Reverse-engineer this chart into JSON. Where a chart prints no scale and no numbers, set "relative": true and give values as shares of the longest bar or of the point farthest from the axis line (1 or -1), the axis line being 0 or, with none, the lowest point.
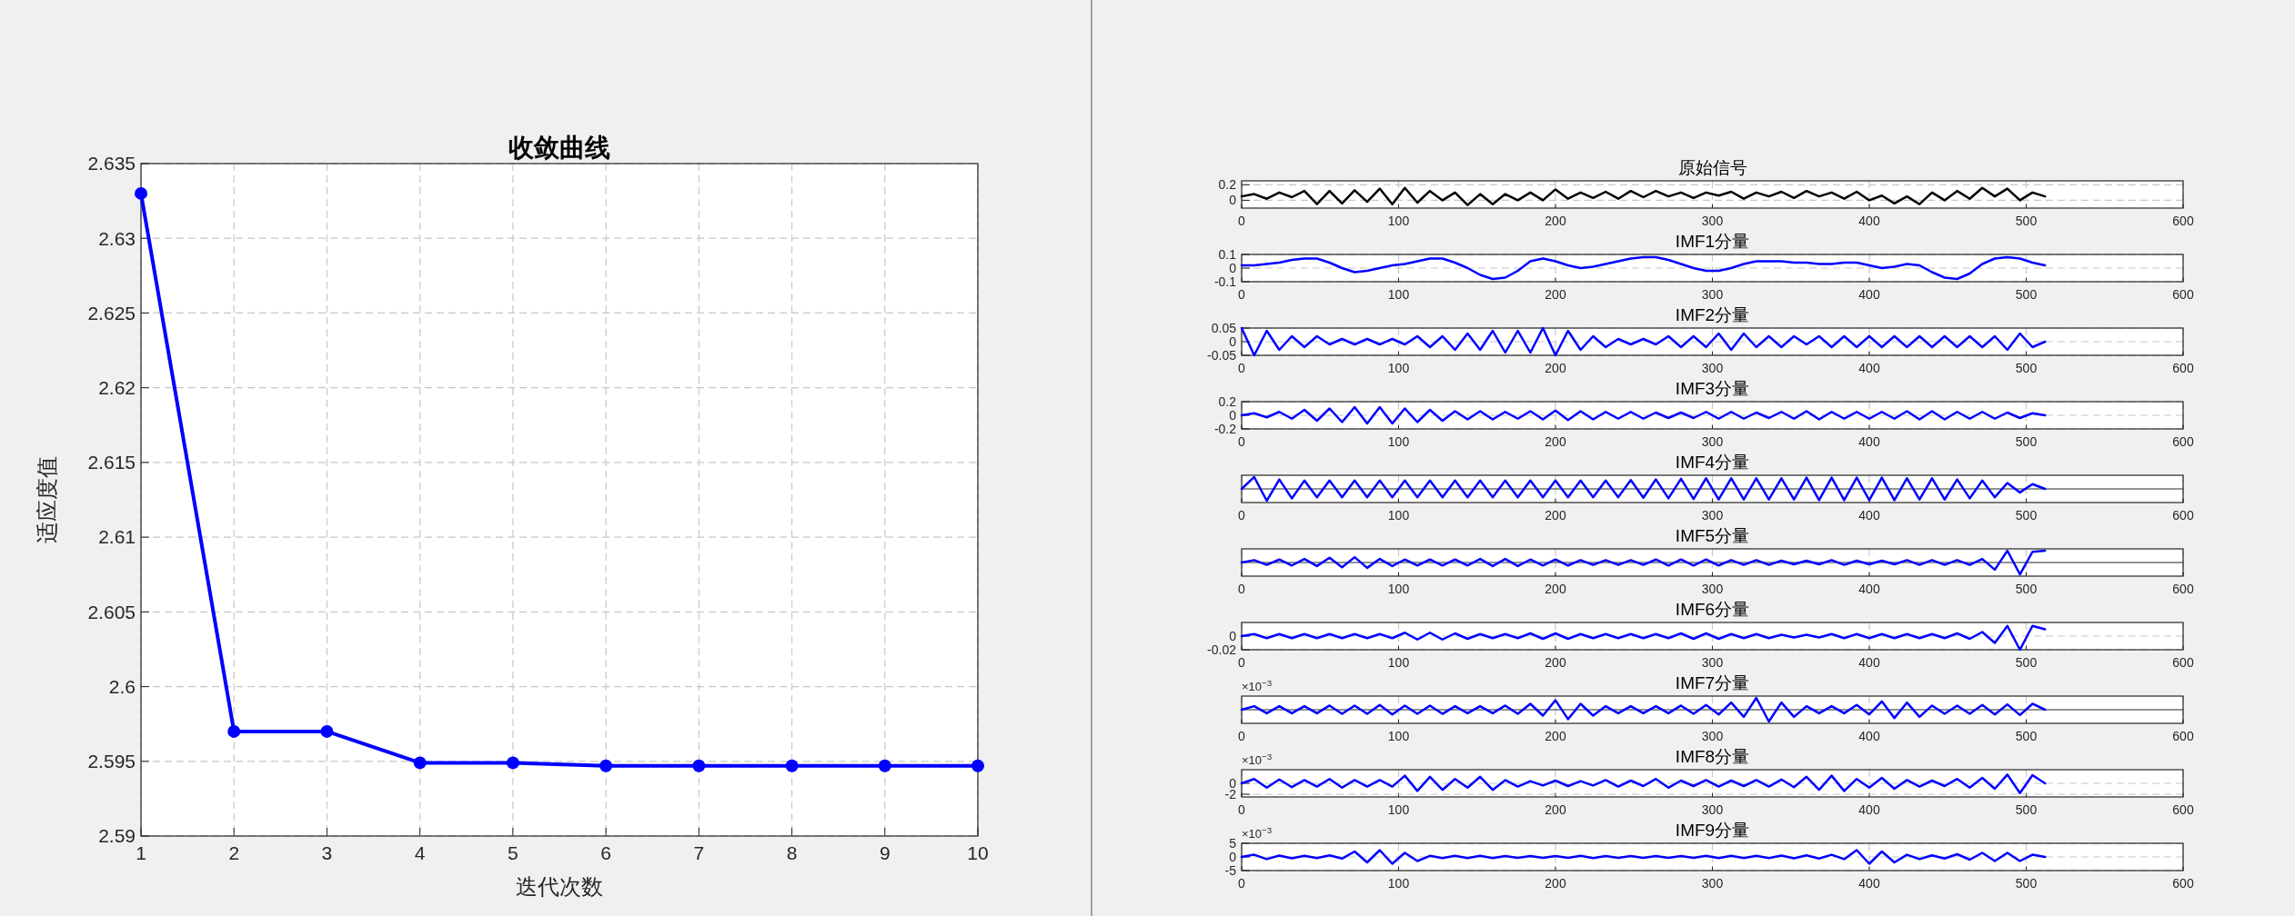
{
  "chart_data": [
    {
      "type": "line",
      "title": "收敛曲线",
      "xlabel": "迭代次数",
      "ylabel": "适应度值",
      "x": [
        1,
        2,
        3,
        4,
        5,
        6,
        7,
        8,
        9,
        10
      ],
      "series": [
        {
          "color": "#0000ff",
          "values": [
            2.633,
            2.597,
            2.597,
            2.5949,
            2.5949,
            2.5947,
            2.5947,
            2.5947,
            2.5947,
            2.5947
          ]
        }
      ],
      "xlim": [
        1,
        10
      ],
      "xticks": [
        1,
        2,
        3,
        4,
        5,
        6,
        7,
        8,
        9,
        10
      ],
      "ylim": [
        2.59,
        2.635
      ],
      "yticks": [
        2.59,
        2.595,
        2.6,
        2.605,
        2.61,
        2.615,
        2.62,
        2.625,
        2.63,
        2.635
      ],
      "grid": true,
      "marker": "circle",
      "line_style": "solid"
    },
    {
      "type": "line",
      "title": "原始信号",
      "x": [
        0,
        8,
        16,
        24,
        32,
        40,
        48,
        56,
        64,
        72,
        80,
        88,
        96,
        104,
        112,
        120,
        128,
        136,
        144,
        152,
        160,
        168,
        176,
        184,
        192,
        200,
        208,
        216,
        224,
        232,
        240,
        248,
        256,
        264,
        272,
        280,
        288,
        296,
        304,
        312,
        320,
        328,
        336,
        344,
        352,
        360,
        368,
        376,
        384,
        392,
        400,
        408,
        416,
        424,
        432,
        440,
        448,
        456,
        464,
        472,
        480,
        488,
        496,
        504,
        512
      ],
      "series": [
        {
          "color": "#000000",
          "values": [
            0.05,
            0.08,
            0.02,
            0.1,
            0.04,
            0.12,
            -0.05,
            0.12,
            -0.04,
            0.13,
            -0.02,
            0.15,
            -0.05,
            0.16,
            -0.03,
            0.12,
            0.0,
            0.1,
            -0.06,
            0.08,
            -0.05,
            0.08,
            0.0,
            0.1,
            0.0,
            0.14,
            0.02,
            0.1,
            0.03,
            0.11,
            0.02,
            0.12,
            0.04,
            0.12,
            0.05,
            0.1,
            0.03,
            0.1,
            0.06,
            0.11,
            0.02,
            0.1,
            0.05,
            0.11,
            0.03,
            0.12,
            0.05,
            0.1,
            0.02,
            0.11,
            0.0,
            0.06,
            -0.04,
            0.05,
            -0.05,
            0.1,
            0.0,
            0.12,
            0.02,
            0.16,
            0.05,
            0.15,
            0.0,
            0.1,
            0.05
          ]
        }
      ],
      "xlim": [
        0,
        600
      ],
      "xticks": [
        0,
        100,
        200,
        300,
        400,
        500,
        600
      ],
      "ylim": [
        -0.1,
        0.25
      ],
      "yticks": [
        0,
        0.2
      ],
      "grid": true
    },
    {
      "type": "line",
      "title": "IMF1分量",
      "x": [
        0,
        8,
        16,
        24,
        32,
        40,
        48,
        56,
        64,
        72,
        80,
        88,
        96,
        104,
        112,
        120,
        128,
        136,
        144,
        152,
        160,
        168,
        176,
        184,
        192,
        200,
        208,
        216,
        224,
        232,
        240,
        248,
        256,
        264,
        272,
        280,
        288,
        296,
        304,
        312,
        320,
        328,
        336,
        344,
        352,
        360,
        368,
        376,
        384,
        392,
        400,
        408,
        416,
        424,
        432,
        440,
        448,
        456,
        464,
        472,
        480,
        488,
        496,
        504,
        512
      ],
      "series": [
        {
          "color": "#0000ff",
          "values": [
            0.02,
            0.02,
            0.03,
            0.04,
            0.06,
            0.07,
            0.07,
            0.04,
            0.0,
            -0.03,
            -0.02,
            0.0,
            0.02,
            0.03,
            0.05,
            0.07,
            0.07,
            0.04,
            0.0,
            -0.05,
            -0.08,
            -0.07,
            -0.02,
            0.05,
            0.07,
            0.05,
            0.02,
            0.0,
            0.01,
            0.03,
            0.05,
            0.07,
            0.08,
            0.08,
            0.06,
            0.03,
            0.0,
            -0.02,
            -0.02,
            0.0,
            0.03,
            0.05,
            0.05,
            0.05,
            0.04,
            0.04,
            0.03,
            0.03,
            0.04,
            0.04,
            0.02,
            0.0,
            0.01,
            0.03,
            0.02,
            -0.03,
            -0.07,
            -0.08,
            -0.04,
            0.03,
            0.07,
            0.08,
            0.07,
            0.04,
            0.02
          ]
        }
      ],
      "xlim": [
        0,
        600
      ],
      "xticks": [
        0,
        100,
        200,
        300,
        400,
        500,
        600
      ],
      "ylim": [
        -0.1,
        0.1
      ],
      "yticks": [
        -0.1,
        0,
        0.1
      ],
      "grid": true
    },
    {
      "type": "line",
      "title": "IMF2分量",
      "x": [
        0,
        8,
        16,
        24,
        32,
        40,
        48,
        56,
        64,
        72,
        80,
        88,
        96,
        104,
        112,
        120,
        128,
        136,
        144,
        152,
        160,
        168,
        176,
        184,
        192,
        200,
        208,
        216,
        224,
        232,
        240,
        248,
        256,
        264,
        272,
        280,
        288,
        296,
        304,
        312,
        320,
        328,
        336,
        344,
        352,
        360,
        368,
        376,
        384,
        392,
        400,
        408,
        416,
        424,
        432,
        440,
        448,
        456,
        464,
        472,
        480,
        488,
        496,
        504,
        512
      ],
      "series": [
        {
          "color": "#0000ff",
          "values": [
            0.05,
            -0.05,
            0.04,
            -0.03,
            0.02,
            -0.02,
            0.02,
            -0.01,
            0.01,
            -0.01,
            0.01,
            -0.01,
            0.01,
            -0.01,
            0.02,
            -0.02,
            0.02,
            -0.03,
            0.03,
            -0.03,
            0.04,
            -0.04,
            0.04,
            -0.04,
            0.05,
            -0.05,
            0.04,
            -0.03,
            0.02,
            -0.02,
            0.01,
            -0.01,
            0.01,
            -0.01,
            0.02,
            -0.02,
            0.02,
            -0.02,
            0.03,
            -0.03,
            0.03,
            -0.02,
            0.02,
            -0.02,
            0.02,
            -0.01,
            0.02,
            -0.02,
            0.02,
            -0.02,
            0.02,
            -0.02,
            0.02,
            -0.02,
            0.02,
            -0.02,
            0.02,
            -0.02,
            0.02,
            -0.02,
            0.02,
            -0.03,
            0.03,
            -0.02,
            0.0
          ]
        }
      ],
      "xlim": [
        0,
        600
      ],
      "xticks": [
        0,
        100,
        200,
        300,
        400,
        500,
        600
      ],
      "ylim": [
        -0.05,
        0.05
      ],
      "yticks": [
        -0.05,
        0,
        0.05
      ],
      "grid": true
    },
    {
      "type": "line",
      "title": "IMF3分量",
      "x": [
        0,
        8,
        16,
        24,
        32,
        40,
        48,
        56,
        64,
        72,
        80,
        88,
        96,
        104,
        112,
        120,
        128,
        136,
        144,
        152,
        160,
        168,
        176,
        184,
        192,
        200,
        208,
        216,
        224,
        232,
        240,
        248,
        256,
        264,
        272,
        280,
        288,
        296,
        304,
        312,
        320,
        328,
        336,
        344,
        352,
        360,
        368,
        376,
        384,
        392,
        400,
        408,
        416,
        424,
        432,
        440,
        448,
        456,
        464,
        472,
        480,
        488,
        496,
        504,
        512
      ],
      "series": [
        {
          "color": "#0000ff",
          "values": [
            0.0,
            0.03,
            -0.03,
            0.05,
            -0.05,
            0.08,
            -0.08,
            0.1,
            -0.1,
            0.12,
            -0.12,
            0.12,
            -0.12,
            0.1,
            -0.1,
            0.08,
            -0.08,
            0.06,
            -0.06,
            0.06,
            -0.06,
            0.05,
            -0.05,
            0.06,
            -0.06,
            0.07,
            -0.07,
            0.06,
            -0.06,
            0.05,
            -0.05,
            0.05,
            -0.05,
            0.04,
            -0.04,
            0.04,
            -0.04,
            0.05,
            -0.05,
            0.05,
            -0.05,
            0.04,
            -0.04,
            0.05,
            -0.05,
            0.06,
            -0.06,
            0.05,
            -0.05,
            0.05,
            -0.05,
            0.05,
            -0.05,
            0.06,
            -0.06,
            0.06,
            -0.06,
            0.05,
            -0.05,
            0.05,
            -0.05,
            0.04,
            -0.04,
            0.03,
            0.0
          ]
        }
      ],
      "xlim": [
        0,
        600
      ],
      "xticks": [
        0,
        100,
        200,
        300,
        400,
        500,
        600
      ],
      "ylim": [
        -0.2,
        0.2
      ],
      "yticks": [
        -0.2,
        0,
        0.2
      ],
      "grid": true
    },
    {
      "type": "line",
      "title": "IMF4分量",
      "relative": true,
      "x": [
        0,
        8,
        16,
        24,
        32,
        40,
        48,
        56,
        64,
        72,
        80,
        88,
        96,
        104,
        112,
        120,
        128,
        136,
        144,
        152,
        160,
        168,
        176,
        184,
        192,
        200,
        208,
        216,
        224,
        232,
        240,
        248,
        256,
        264,
        272,
        280,
        288,
        296,
        304,
        312,
        320,
        328,
        336,
        344,
        352,
        360,
        368,
        376,
        384,
        392,
        400,
        408,
        416,
        424,
        432,
        440,
        448,
        456,
        464,
        472,
        480,
        488,
        496,
        504,
        512
      ],
      "series": [
        {
          "color": "#0000ff",
          "values": [
            0.0,
            1,
            -1,
            0.8,
            -0.8,
            0.7,
            -0.7,
            0.7,
            -0.7,
            0.7,
            -0.7,
            0.7,
            -0.7,
            0.7,
            -0.7,
            0.7,
            -0.7,
            0.7,
            -0.7,
            0.7,
            -0.7,
            0.7,
            -0.7,
            0.7,
            -0.7,
            0.7,
            -0.7,
            0.7,
            -0.7,
            0.7,
            -0.7,
            0.75,
            -0.75,
            0.8,
            -0.8,
            0.85,
            -0.85,
            0.9,
            -0.9,
            0.9,
            -0.9,
            0.9,
            -0.9,
            0.9,
            -0.9,
            0.95,
            -0.95,
            0.95,
            -0.95,
            0.95,
            -0.95,
            0.95,
            -0.95,
            0.9,
            -0.9,
            0.9,
            -0.9,
            0.8,
            -0.8,
            0.7,
            -0.7,
            0.5,
            -0.3,
            0.4,
            0.0
          ]
        }
      ],
      "xlim": [
        0,
        600
      ],
      "xticks": [
        0,
        100,
        200,
        300,
        400,
        500,
        600
      ],
      "grid": true
    },
    {
      "type": "line",
      "title": "IMF5分量",
      "relative": true,
      "x": [
        0,
        8,
        16,
        24,
        32,
        40,
        48,
        56,
        64,
        72,
        80,
        88,
        96,
        104,
        112,
        120,
        128,
        136,
        144,
        152,
        160,
        168,
        176,
        184,
        192,
        200,
        208,
        216,
        224,
        232,
        240,
        248,
        256,
        264,
        272,
        280,
        288,
        296,
        304,
        312,
        320,
        328,
        336,
        344,
        352,
        360,
        368,
        376,
        384,
        392,
        400,
        408,
        416,
        424,
        432,
        440,
        448,
        456,
        464,
        472,
        480,
        488,
        496,
        504,
        512
      ],
      "series": [
        {
          "color": "#0000ff",
          "values": [
            0.0,
            0.2,
            -0.2,
            0.25,
            -0.25,
            0.3,
            -0.3,
            0.4,
            -0.4,
            0.45,
            -0.45,
            0.3,
            -0.3,
            0.25,
            -0.25,
            0.25,
            -0.25,
            0.25,
            -0.25,
            0.3,
            -0.3,
            0.3,
            -0.3,
            0.25,
            -0.25,
            0.25,
            -0.25,
            0.2,
            -0.2,
            0.2,
            -0.2,
            0.2,
            -0.2,
            0.25,
            -0.25,
            0.25,
            -0.25,
            0.25,
            -0.25,
            0.2,
            -0.2,
            0.2,
            -0.2,
            0.15,
            -0.15,
            0.15,
            -0.15,
            0.2,
            -0.2,
            0.15,
            -0.15,
            0.15,
            -0.15,
            0.2,
            -0.2,
            0.2,
            -0.2,
            0.2,
            -0.2,
            0.3,
            -0.6,
            1,
            -1,
            0.9,
            1
          ]
        }
      ],
      "xlim": [
        0,
        600
      ],
      "xticks": [
        0,
        100,
        200,
        300,
        400,
        500,
        600
      ],
      "grid": true
    },
    {
      "type": "line",
      "title": "IMF6分量",
      "x": [
        0,
        8,
        16,
        24,
        32,
        40,
        48,
        56,
        64,
        72,
        80,
        88,
        96,
        104,
        112,
        120,
        128,
        136,
        144,
        152,
        160,
        168,
        176,
        184,
        192,
        200,
        208,
        216,
        224,
        232,
        240,
        248,
        256,
        264,
        272,
        280,
        288,
        296,
        304,
        312,
        320,
        328,
        336,
        344,
        352,
        360,
        368,
        376,
        384,
        392,
        400,
        408,
        416,
        424,
        432,
        440,
        448,
        456,
        464,
        472,
        480,
        488,
        496,
        504,
        512
      ],
      "series": [
        {
          "color": "#0000ff",
          "values": [
            0.0,
            0.003,
            -0.003,
            0.003,
            -0.003,
            0.003,
            -0.003,
            0.003,
            -0.003,
            0.003,
            -0.003,
            0.003,
            -0.003,
            0.005,
            -0.005,
            0.005,
            -0.005,
            0.004,
            -0.004,
            0.003,
            -0.003,
            0.003,
            -0.003,
            0.004,
            -0.004,
            0.004,
            -0.004,
            0.003,
            -0.003,
            0.003,
            -0.003,
            0.003,
            -0.003,
            0.003,
            -0.003,
            0.004,
            -0.004,
            0.004,
            -0.004,
            0.003,
            -0.003,
            0.003,
            -0.003,
            0.002,
            -0.002,
            0.002,
            -0.002,
            0.003,
            -0.003,
            0.003,
            -0.003,
            0.003,
            -0.003,
            0.003,
            -0.003,
            0.003,
            -0.003,
            0.004,
            -0.004,
            0.006,
            -0.01,
            0.015,
            -0.02,
            0.015,
            0.01
          ]
        }
      ],
      "xlim": [
        0,
        600
      ],
      "xticks": [
        0,
        100,
        200,
        300,
        400,
        500,
        600
      ],
      "ylim": [
        -0.02,
        0.02
      ],
      "yticks": [
        -0.02,
        0
      ],
      "grid": true
    },
    {
      "type": "line",
      "title": "IMF7分量",
      "relative": true,
      "annotations": [
        "×10$^{−3}$"
      ],
      "x": [
        0,
        8,
        16,
        24,
        32,
        40,
        48,
        56,
        64,
        72,
        80,
        88,
        96,
        104,
        112,
        120,
        128,
        136,
        144,
        152,
        160,
        168,
        176,
        184,
        192,
        200,
        208,
        216,
        224,
        232,
        240,
        248,
        256,
        264,
        272,
        280,
        288,
        296,
        304,
        312,
        320,
        328,
        336,
        344,
        352,
        360,
        368,
        376,
        384,
        392,
        400,
        408,
        416,
        424,
        432,
        440,
        448,
        456,
        464,
        472,
        480,
        488,
        496,
        504,
        512
      ],
      "series": [
        {
          "color": "#0000ff",
          "values": [
            0.0,
            0.3,
            -0.3,
            0.3,
            -0.3,
            0.3,
            -0.3,
            0.35,
            -0.35,
            0.35,
            -0.35,
            0.4,
            -0.4,
            0.35,
            -0.35,
            0.35,
            -0.35,
            0.3,
            -0.3,
            0.3,
            -0.3,
            0.35,
            -0.35,
            0.5,
            -0.5,
            0.8,
            -0.8,
            0.5,
            -0.5,
            0.3,
            -0.3,
            0.3,
            -0.3,
            0.3,
            -0.3,
            0.35,
            -0.35,
            0.4,
            -0.4,
            0.6,
            -0.6,
            1,
            -1,
            0.6,
            -0.6,
            0.3,
            -0.3,
            0.3,
            -0.3,
            0.4,
            -0.4,
            0.7,
            -0.7,
            0.6,
            -0.6,
            0.35,
            -0.35,
            0.35,
            -0.35,
            0.4,
            -0.4,
            0.45,
            -0.45,
            0.5,
            0.0
          ]
        }
      ],
      "xlim": [
        0,
        600
      ],
      "xticks": [
        0,
        100,
        200,
        300,
        400,
        500,
        600
      ],
      "grid": true
    },
    {
      "type": "line",
      "title": "IMF8分量",
      "annotations": [
        "×10$^{−3}$"
      ],
      "x": [
        0,
        8,
        16,
        24,
        32,
        40,
        48,
        56,
        64,
        72,
        80,
        88,
        96,
        104,
        112,
        120,
        128,
        136,
        144,
        152,
        160,
        168,
        176,
        184,
        192,
        200,
        208,
        216,
        224,
        232,
        240,
        248,
        256,
        264,
        272,
        280,
        288,
        296,
        304,
        312,
        320,
        328,
        336,
        344,
        352,
        360,
        368,
        376,
        384,
        392,
        400,
        408,
        416,
        424,
        432,
        440,
        448,
        456,
        464,
        472,
        480,
        488,
        496,
        504,
        512
      ],
      "series": [
        {
          "color": "#0000ff",
          "values": [
            0.0,
            0.8,
            -0.8,
            0.7,
            -0.7,
            0.6,
            -0.6,
            0.8,
            -0.8,
            0.6,
            -0.6,
            0.6,
            -0.6,
            1.4,
            -1.4,
            1.2,
            -1.2,
            0.8,
            -0.8,
            1.2,
            -1.2,
            0.6,
            -0.6,
            0.4,
            -0.4,
            0.5,
            -0.5,
            0.4,
            -0.4,
            0.6,
            -0.6,
            0.5,
            -0.5,
            0.8,
            -0.8,
            0.5,
            -0.5,
            0.6,
            -0.6,
            0.5,
            -0.5,
            0.6,
            -0.6,
            0.7,
            -0.7,
            1.2,
            -1.2,
            1.4,
            -1.4,
            0.8,
            -0.8,
            1.0,
            -1.0,
            0.6,
            -0.6,
            0.5,
            -0.5,
            0.8,
            -0.8,
            1.0,
            -1.0,
            1.6,
            -1.8,
            1.5,
            0.0
          ]
        }
      ],
      "xlim": [
        0,
        600
      ],
      "xticks": [
        0,
        100,
        200,
        300,
        400,
        500,
        600
      ],
      "ylim": [
        -2.5,
        2.5
      ],
      "yticks": [
        -2,
        0
      ],
      "grid": true
    },
    {
      "type": "line",
      "title": "IMF9分量",
      "annotations": [
        "×10$^{−3}$"
      ],
      "x": [
        0,
        8,
        16,
        24,
        32,
        40,
        48,
        56,
        64,
        72,
        80,
        88,
        96,
        104,
        112,
        120,
        128,
        136,
        144,
        152,
        160,
        168,
        176,
        184,
        192,
        200,
        208,
        216,
        224,
        232,
        240,
        248,
        256,
        264,
        272,
        280,
        288,
        296,
        304,
        312,
        320,
        328,
        336,
        344,
        352,
        360,
        368,
        376,
        384,
        392,
        400,
        408,
        416,
        424,
        432,
        440,
        448,
        456,
        464,
        472,
        480,
        488,
        496,
        504,
        512
      ],
      "series": [
        {
          "color": "#0000ff",
          "values": [
            0.0,
            0.8,
            -0.8,
            0.5,
            -0.5,
            0.4,
            -0.4,
            0.6,
            -0.6,
            2.0,
            -2.0,
            2.5,
            -2.5,
            1.5,
            -1.5,
            0.4,
            -0.4,
            0.4,
            -0.4,
            0.4,
            -0.4,
            0.3,
            -0.3,
            0.3,
            -0.3,
            0.3,
            -0.3,
            0.4,
            -0.4,
            0.3,
            -0.3,
            0.3,
            -0.3,
            0.3,
            -0.3,
            0.3,
            -0.3,
            0.4,
            -0.4,
            0.4,
            -0.4,
            0.4,
            -0.4,
            0.5,
            -0.5,
            0.6,
            -0.6,
            0.8,
            -0.8,
            2.5,
            -2.5,
            2.0,
            -2.0,
            0.8,
            -0.8,
            0.6,
            -0.6,
            1.0,
            -1.0,
            1.5,
            -1.5,
            1.5,
            -1.5,
            0.8,
            0.0
          ]
        }
      ],
      "xlim": [
        0,
        600
      ],
      "xticks": [
        0,
        100,
        200,
        300,
        400,
        500,
        600
      ],
      "ylim": [
        -5,
        5
      ],
      "yticks": [
        -5,
        0,
        5
      ],
      "grid": true
    }
  ]
}
